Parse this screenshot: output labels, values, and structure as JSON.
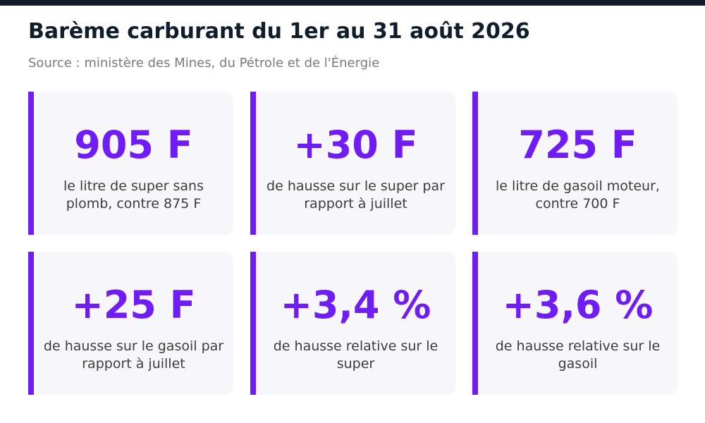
{
  "header": {
    "title": "Barème carburant du 1er au 31 août 2026",
    "source": "Source : ministère des Mines, du Pétrole et de l'Énergie"
  },
  "colors": {
    "accent": "#6f1cf5",
    "top_bar": "#0f1a2a",
    "card_bg": "#f7f7fb"
  },
  "cards": [
    {
      "value": "905 F",
      "label": "le litre de super sans plomb, contre 875 F"
    },
    {
      "value": "+30 F",
      "label": "de hausse sur le super par rapport à juillet"
    },
    {
      "value": "725 F",
      "label": "le litre de gasoil moteur, contre 700 F"
    },
    {
      "value": "+25 F",
      "label": "de hausse sur le gasoil par rapport à juillet"
    },
    {
      "value": "+3,4 %",
      "label": "de hausse relative sur le super"
    },
    {
      "value": "+3,6 %",
      "label": "de hausse relative sur le gasoil"
    }
  ]
}
